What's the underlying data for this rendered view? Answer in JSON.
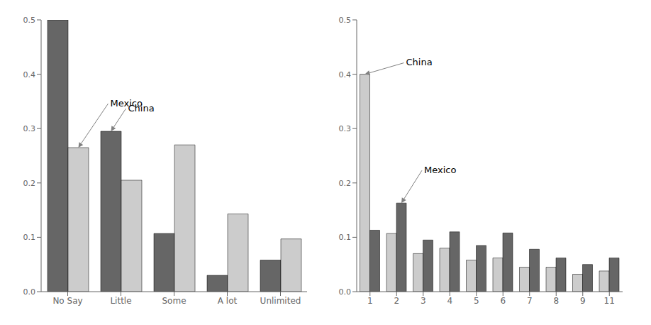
{
  "chart_data": [
    {
      "type": "bar",
      "categories": [
        "No Say",
        "Little",
        "Some",
        "A lot",
        "Unlimited"
      ],
      "series": [
        {
          "color": "#666666",
          "values": [
            0.5,
            0.295,
            0.107,
            0.03,
            0.058
          ]
        },
        {
          "color": "#cccccc",
          "values": [
            0.265,
            0.205,
            0.27,
            0.143,
            0.097
          ]
        }
      ],
      "ylim": [
        0.0,
        0.5
      ],
      "yticks": [
        {
          "value": 0.0,
          "label": "0.0"
        },
        0.1,
        0.2,
        0.3,
        0.4,
        0.5
      ],
      "grid": false,
      "annotations": [
        {
          "text": "Mexico",
          "category": "No Say",
          "value": 0.265
        },
        {
          "text": "China",
          "category": "Little",
          "value": 0.295
        }
      ]
    },
    {
      "type": "bar",
      "categories": [
        "1",
        "2",
        "3",
        "4",
        "5",
        "6",
        "7",
        "8",
        "9",
        "11"
      ],
      "series": [
        {
          "color": "#cccccc",
          "values": [
            0.4,
            0.107,
            0.07,
            0.08,
            0.058,
            0.062,
            0.045,
            0.045,
            0.032,
            0.038
          ]
        },
        {
          "color": "#666666",
          "values": [
            0.113,
            0.163,
            0.095,
            0.11,
            0.085,
            0.108,
            0.078,
            0.062,
            0.05,
            0.062
          ]
        }
      ],
      "ylim": [
        0.0,
        0.5
      ],
      "yticks": [
        {
          "value": 0.0,
          "label": "0.0"
        },
        0.1,
        0.2,
        0.3,
        0.4,
        0.5
      ],
      "grid": false,
      "annotations": [
        {
          "text": "China",
          "category": "1",
          "value": 0.4
        },
        {
          "text": "Mexico",
          "category": "2",
          "value": 0.163
        }
      ]
    }
  ]
}
